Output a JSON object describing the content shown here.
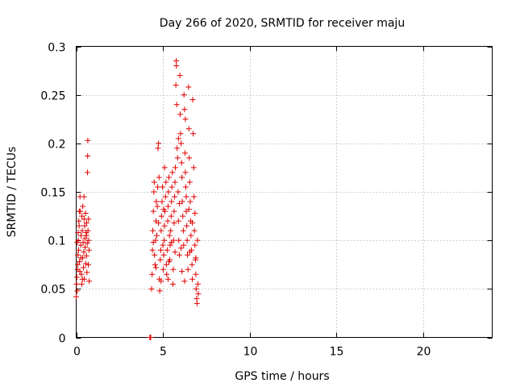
{
  "colors": {
    "points": "#e00000",
    "grid": "#a0a0a0",
    "axis": "#000000"
  },
  "chart_data": {
    "type": "scatter",
    "title": "Day 266 of 2020, SRMTID for receiver maju",
    "xlabel": "GPS time / hours",
    "ylabel": "SRMTID / TECUs",
    "xlim": [
      0,
      24
    ],
    "ylim": [
      0,
      0.3
    ],
    "xticks": [
      0,
      5,
      10,
      15,
      20
    ],
    "xtick_labels": [
      "0",
      "5",
      "10",
      "15",
      "20"
    ],
    "yticks": [
      0,
      0.05,
      0.1,
      0.15,
      0.2,
      0.25,
      0.3
    ],
    "ytick_labels": [
      "0",
      "0.05",
      "0.1",
      "0.15",
      "0.2",
      "0.25",
      "0.3"
    ],
    "grid": true,
    "marker": "plus",
    "series": [
      {
        "name": "SRMTID",
        "points": [
          [
            0.0,
            0.042
          ],
          [
            0.02,
            0.055
          ],
          [
            0.04,
            0.062
          ],
          [
            0.06,
            0.048
          ],
          [
            0.08,
            0.07
          ],
          [
            0.1,
            0.085
          ],
          [
            0.12,
            0.1
          ],
          [
            0.14,
            0.09
          ],
          [
            0.15,
            0.12
          ],
          [
            0.17,
            0.115
          ],
          [
            0.19,
            0.078
          ],
          [
            0.21,
            0.068
          ],
          [
            0.22,
            0.145
          ],
          [
            0.24,
            0.13
          ],
          [
            0.26,
            0.095
          ],
          [
            0.28,
            0.105
          ],
          [
            0.3,
            0.065
          ],
          [
            0.32,
            0.055
          ],
          [
            0.33,
            0.125
          ],
          [
            0.35,
            0.11
          ],
          [
            0.37,
            0.082
          ],
          [
            0.38,
            0.135
          ],
          [
            0.4,
            0.098
          ],
          [
            0.42,
            0.072
          ],
          [
            0.44,
            0.088
          ],
          [
            0.45,
            0.145
          ],
          [
            0.47,
            0.06
          ],
          [
            0.49,
            0.115
          ],
          [
            0.5,
            0.102
          ],
          [
            0.52,
            0.093
          ],
          [
            0.54,
            0.128
          ],
          [
            0.55,
            0.076
          ],
          [
            0.57,
            0.108
          ],
          [
            0.59,
            0.084
          ],
          [
            0.6,
            0.118
          ],
          [
            0.62,
            0.067
          ],
          [
            0.64,
            0.097
          ],
          [
            0.65,
            0.17
          ],
          [
            0.66,
            0.187
          ],
          [
            0.67,
            0.203
          ],
          [
            0.68,
            0.11
          ],
          [
            0.7,
            0.075
          ],
          [
            0.72,
            0.1
          ],
          [
            0.74,
            0.09
          ],
          [
            0.75,
            0.058
          ],
          [
            0.05,
            0.098
          ],
          [
            0.11,
            0.108
          ],
          [
            0.27,
            0.082
          ],
          [
            0.36,
            0.06
          ],
          [
            0.46,
            0.122
          ],
          [
            0.6,
            0.105
          ],
          [
            0.71,
            0.122
          ],
          [
            0.18,
            0.13
          ],
          [
            0.09,
            0.075
          ],
          [
            4.25,
            0.0
          ],
          [
            4.28,
            0.0
          ],
          [
            4.3,
            0.0
          ],
          [
            4.35,
            0.05
          ],
          [
            4.38,
            0.065
          ],
          [
            4.4,
            0.09
          ],
          [
            4.42,
            0.11
          ],
          [
            4.45,
            0.13
          ],
          [
            4.48,
            0.15
          ],
          [
            4.5,
            0.16
          ],
          [
            4.52,
            0.085
          ],
          [
            4.55,
            0.075
          ],
          [
            4.58,
            0.1
          ],
          [
            4.6,
            0.12
          ],
          [
            4.62,
            0.14
          ],
          [
            4.65,
            0.105
          ],
          [
            4.68,
            0.135
          ],
          [
            4.7,
            0.155
          ],
          [
            4.72,
            0.195
          ],
          [
            4.75,
            0.2
          ],
          [
            4.78,
            0.165
          ],
          [
            4.8,
            0.06
          ],
          [
            4.82,
            0.048
          ],
          [
            4.85,
            0.08
          ],
          [
            4.88,
            0.09
          ],
          [
            4.9,
            0.11
          ],
          [
            4.92,
            0.125
          ],
          [
            4.95,
            0.14
          ],
          [
            4.98,
            0.155
          ],
          [
            5.0,
            0.095
          ],
          [
            5.02,
            0.07
          ],
          [
            5.05,
            0.085
          ],
          [
            5.08,
            0.1
          ],
          [
            5.1,
            0.115
          ],
          [
            5.12,
            0.13
          ],
          [
            5.15,
            0.145
          ],
          [
            5.18,
            0.16
          ],
          [
            5.2,
            0.075
          ],
          [
            5.22,
            0.065
          ],
          [
            5.25,
            0.09
          ],
          [
            5.28,
            0.12
          ],
          [
            5.3,
            0.135
          ],
          [
            5.32,
            0.15
          ],
          [
            5.35,
            0.165
          ],
          [
            5.38,
            0.105
          ],
          [
            5.4,
            0.08
          ],
          [
            5.42,
            0.095
          ],
          [
            5.45,
            0.11
          ],
          [
            5.48,
            0.125
          ],
          [
            5.5,
            0.14
          ],
          [
            5.52,
            0.155
          ],
          [
            5.55,
            0.17
          ],
          [
            5.58,
            0.055
          ],
          [
            5.6,
            0.07
          ],
          [
            5.62,
            0.1
          ],
          [
            5.65,
            0.13
          ],
          [
            5.68,
            0.145
          ],
          [
            5.7,
            0.16
          ],
          [
            5.72,
            0.175
          ],
          [
            5.75,
            0.26
          ],
          [
            5.77,
            0.285
          ],
          [
            5.78,
            0.28
          ],
          [
            5.8,
            0.24
          ],
          [
            5.82,
            0.195
          ],
          [
            5.85,
            0.185
          ],
          [
            5.88,
            0.15
          ],
          [
            5.9,
            0.12
          ],
          [
            5.92,
            0.1
          ],
          [
            5.95,
            0.085
          ],
          [
            5.98,
            0.27
          ],
          [
            6.0,
            0.23
          ],
          [
            6.02,
            0.21
          ],
          [
            6.05,
            0.2
          ],
          [
            6.08,
            0.18
          ],
          [
            6.1,
            0.165
          ],
          [
            6.12,
            0.14
          ],
          [
            6.15,
            0.125
          ],
          [
            6.18,
            0.11
          ],
          [
            6.2,
            0.095
          ],
          [
            6.22,
            0.25
          ],
          [
            6.25,
            0.235
          ],
          [
            6.28,
            0.19
          ],
          [
            6.3,
            0.17
          ],
          [
            6.32,
            0.155
          ],
          [
            6.35,
            0.13
          ],
          [
            6.38,
            0.115
          ],
          [
            6.4,
            0.1
          ],
          [
            6.42,
            0.085
          ],
          [
            6.45,
            0.07
          ],
          [
            6.48,
            0.258
          ],
          [
            6.5,
            0.215
          ],
          [
            6.52,
            0.185
          ],
          [
            6.55,
            0.16
          ],
          [
            6.58,
            0.14
          ],
          [
            6.6,
            0.12
          ],
          [
            6.62,
            0.105
          ],
          [
            6.65,
            0.09
          ],
          [
            6.68,
            0.075
          ],
          [
            6.7,
            0.06
          ],
          [
            6.72,
            0.245
          ],
          [
            6.75,
            0.21
          ],
          [
            6.78,
            0.175
          ],
          [
            6.8,
            0.145
          ],
          [
            6.82,
            0.11
          ],
          [
            6.85,
            0.095
          ],
          [
            6.88,
            0.08
          ],
          [
            6.9,
            0.065
          ],
          [
            6.92,
            0.05
          ],
          [
            6.95,
            0.04
          ],
          [
            6.97,
            0.035
          ],
          [
            7.0,
            0.1
          ],
          [
            7.02,
            0.055
          ],
          [
            7.04,
            0.045
          ],
          [
            4.6,
            0.072
          ],
          [
            4.9,
            0.058
          ],
          [
            5.1,
            0.175
          ],
          [
            5.3,
            0.06
          ],
          [
            5.5,
            0.098
          ],
          [
            5.7,
            0.088
          ],
          [
            5.9,
            0.205
          ],
          [
            6.1,
            0.068
          ],
          [
            6.3,
            0.225
          ],
          [
            6.5,
            0.132
          ],
          [
            6.7,
            0.118
          ],
          [
            6.9,
            0.082
          ],
          [
            4.45,
            0.098
          ],
          [
            4.75,
            0.118
          ],
          [
            5.05,
            0.132
          ],
          [
            5.35,
            0.078
          ],
          [
            5.65,
            0.118
          ],
          [
            5.95,
            0.138
          ],
          [
            6.25,
            0.058
          ],
          [
            6.55,
            0.088
          ],
          [
            6.85,
            0.128
          ],
          [
            6.05,
            0.092
          ],
          [
            6.35,
            0.145
          ]
        ]
      }
    ]
  }
}
